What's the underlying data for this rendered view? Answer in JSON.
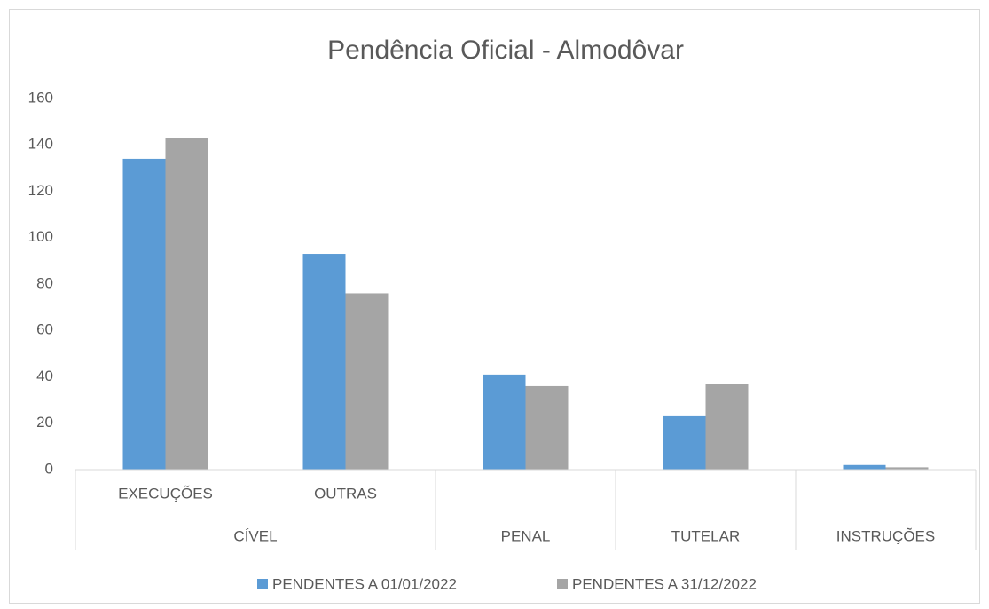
{
  "chart_data": {
    "type": "bar",
    "title": "Pendência Oficial - Almodôvar",
    "groups": [
      {
        "name": "CÍVEL",
        "categories": [
          "EXECUÇÕES",
          "OUTRAS"
        ]
      },
      {
        "name": "PENAL",
        "categories": [
          null
        ]
      },
      {
        "name": "TUTELAR",
        "categories": [
          null
        ]
      },
      {
        "name": "INSTRUÇÕES",
        "categories": [
          null
        ]
      }
    ],
    "series": [
      {
        "name": "PENDENTES A 01/01/2022",
        "color": "#5b9bd5",
        "values": [
          134,
          93,
          41,
          23,
          2
        ]
      },
      {
        "name": "PENDENTES A 31/12/2022",
        "color": "#a5a5a5",
        "values": [
          143,
          76,
          36,
          37,
          1
        ]
      }
    ],
    "ylim": [
      0,
      160
    ],
    "yticks": [
      0,
      20,
      40,
      60,
      80,
      100,
      120,
      140,
      160
    ],
    "grid": false,
    "legend": "bottom"
  }
}
